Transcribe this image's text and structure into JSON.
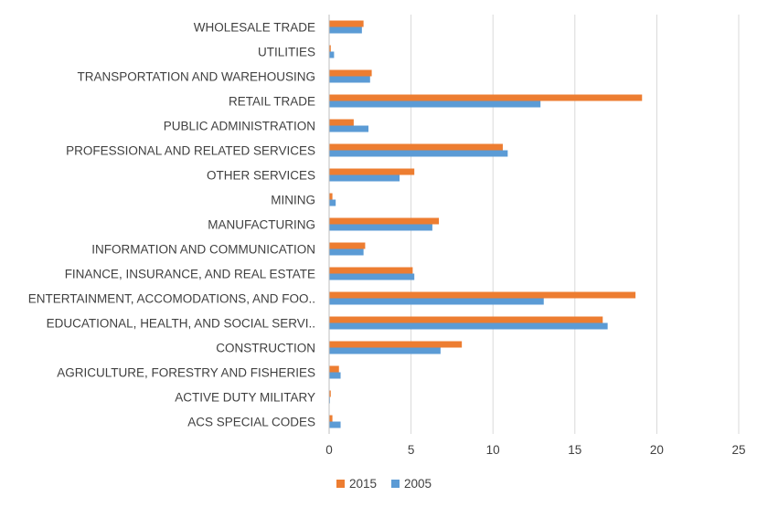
{
  "chart_data": {
    "type": "bar",
    "orientation": "horizontal",
    "title": "",
    "xlabel": "",
    "ylabel": "",
    "xlim": [
      0,
      25
    ],
    "x_ticks": [
      "0",
      "5",
      "10",
      "15",
      "20",
      "25"
    ],
    "grid": "vertical",
    "legend_position": "bottom",
    "categories": [
      "WHOLESALE TRADE",
      "UTILITIES",
      "TRANSPORTATION AND WAREHOUSING",
      "RETAIL TRADE",
      "PUBLIC ADMINISTRATION",
      "PROFESSIONAL AND RELATED SERVICES",
      "OTHER SERVICES",
      "MINING",
      "MANUFACTURING",
      "INFORMATION AND COMMUNICATION",
      "FINANCE, INSURANCE, AND REAL ESTATE",
      "ENTERTAINMENT, ACCOMODATIONS, AND FOO..",
      "EDUCATIONAL, HEALTH, AND SOCIAL SERVI..",
      "CONSTRUCTION",
      "AGRICULTURE, FORESTRY AND FISHERIES",
      "ACTIVE DUTY MILITARY",
      "ACS SPECIAL CODES"
    ],
    "series": [
      {
        "name": "2015",
        "color": "#ED7D31",
        "values": [
          2.1,
          0.1,
          2.6,
          19.1,
          1.5,
          10.6,
          5.2,
          0.2,
          6.7,
          2.2,
          5.1,
          18.7,
          16.7,
          8.1,
          0.6,
          0.1,
          0.2
        ]
      },
      {
        "name": "2005",
        "color": "#5B9BD5",
        "values": [
          2.0,
          0.3,
          2.5,
          12.9,
          2.4,
          10.9,
          4.3,
          0.4,
          6.3,
          2.1,
          5.2,
          13.1,
          17.0,
          6.8,
          0.7,
          0.05,
          0.7
        ]
      }
    ]
  }
}
